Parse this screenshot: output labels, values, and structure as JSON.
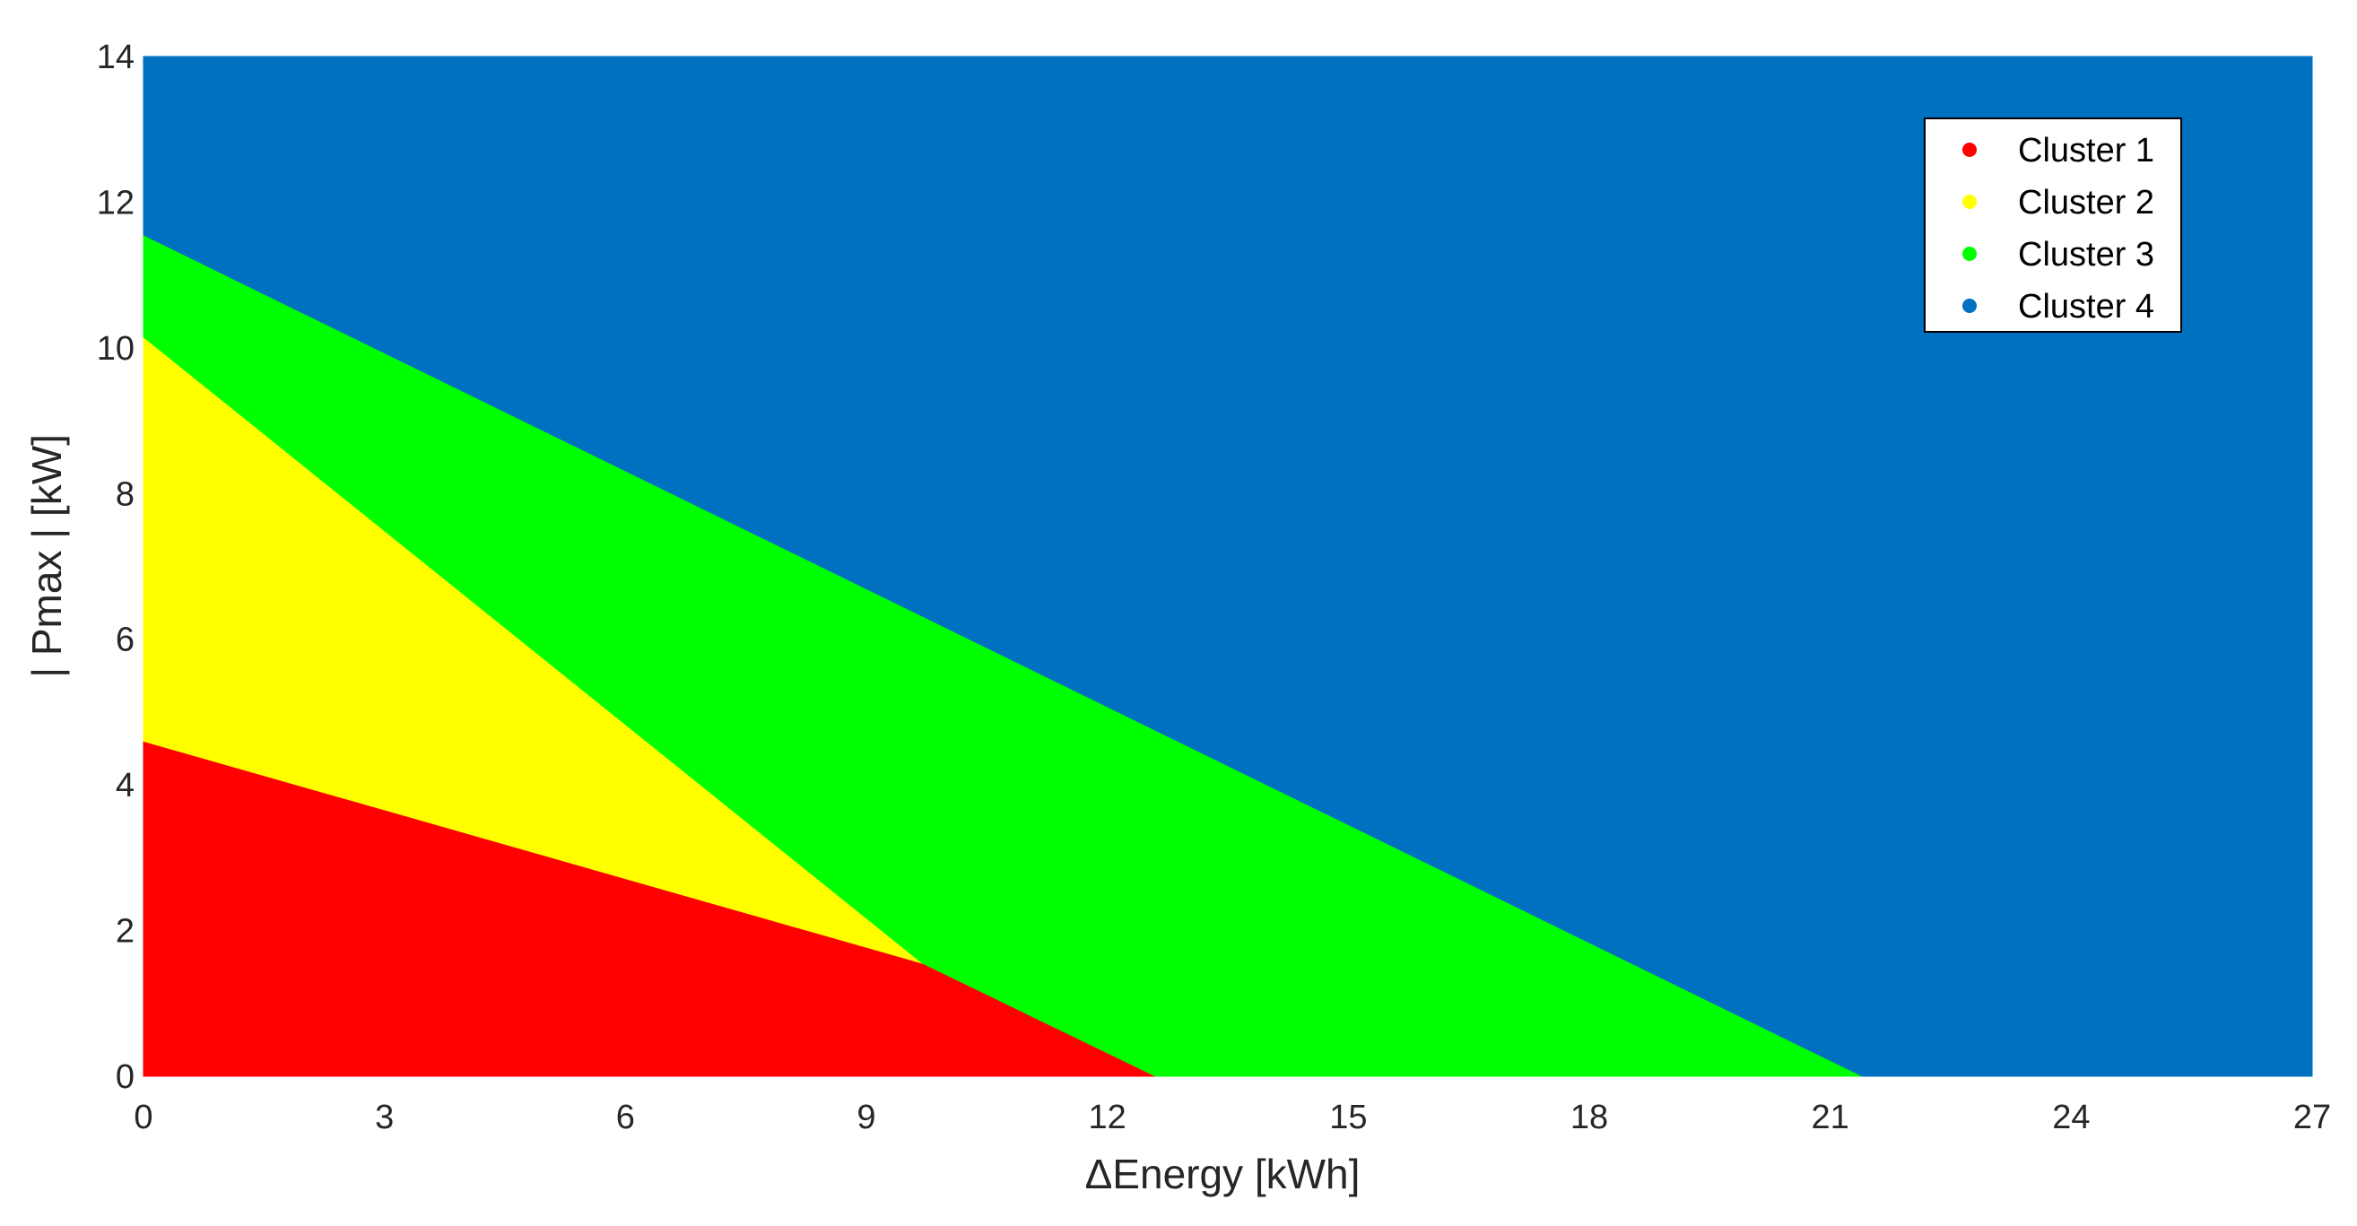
{
  "chart_data": {
    "type": "area",
    "title": "",
    "xlabel": "ΔEnergy [kWh]",
    "ylabel": "| Pmax | [kW]",
    "xlim": [
      0,
      27
    ],
    "ylim": [
      0,
      14
    ],
    "xticks": [
      0,
      3,
      6,
      9,
      12,
      15,
      18,
      21,
      24,
      27
    ],
    "yticks": [
      0,
      2,
      4,
      6,
      8,
      10,
      12,
      14
    ],
    "xtick_labels": [
      "0",
      "3",
      "6",
      "9",
      "12",
      "15",
      "18",
      "21",
      "24",
      "27"
    ],
    "ytick_labels": [
      "0",
      "2",
      "4",
      "6",
      "8",
      "10",
      "12",
      "14"
    ],
    "legend_position": "top-right",
    "series": [
      {
        "name": "Cluster 1",
        "color": "#ff0000",
        "region": [
          [
            0,
            0
          ],
          [
            0,
            4.6
          ],
          [
            9.7,
            1.55
          ],
          [
            12.6,
            0
          ]
        ]
      },
      {
        "name": "Cluster 2",
        "color": "#ffff00",
        "region": [
          [
            0,
            4.6
          ],
          [
            0,
            10.15
          ],
          [
            9.7,
            1.55
          ]
        ]
      },
      {
        "name": "Cluster 3",
        "color": "#00ff00",
        "region": [
          [
            0,
            10.15
          ],
          [
            0,
            11.55
          ],
          [
            21.4,
            0
          ],
          [
            12.6,
            0
          ],
          [
            9.7,
            1.55
          ]
        ]
      },
      {
        "name": "Cluster 4",
        "color": "#0070c0",
        "region": [
          [
            0,
            11.55
          ],
          [
            0,
            14
          ],
          [
            27,
            14
          ],
          [
            27,
            0
          ],
          [
            21.4,
            0
          ]
        ]
      }
    ]
  }
}
